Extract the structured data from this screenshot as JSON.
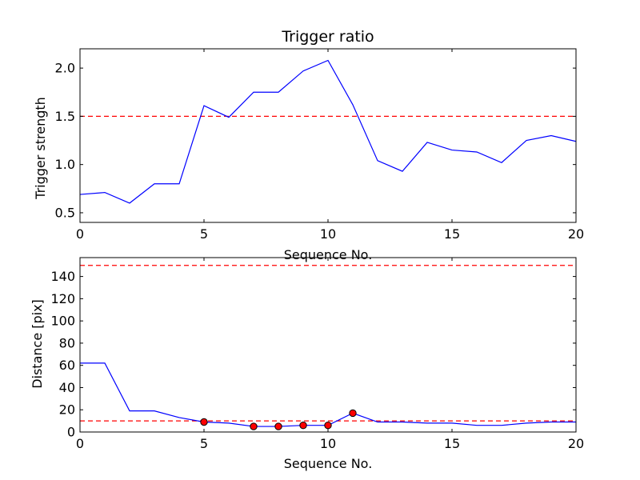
{
  "chart_data": [
    {
      "type": "line",
      "title": "Trigger ratio",
      "xlabel": "Sequence No.",
      "ylabel": "Trigger strength",
      "xlim": [
        0,
        20
      ],
      "ylim": [
        0.4,
        2.2
      ],
      "xticks": [
        "0",
        "5",
        "10",
        "15",
        "20"
      ],
      "yticks": [
        "0.5",
        "1.0",
        "1.5",
        "2.0"
      ],
      "grid": false,
      "series": [
        {
          "color": "#0000ff",
          "style": "solid",
          "x": [
            0,
            1,
            2,
            3,
            4,
            5,
            6,
            7,
            8,
            9,
            10,
            11,
            12,
            13,
            14,
            15,
            16,
            17,
            18,
            19,
            20
          ],
          "y": [
            0.69,
            0.71,
            0.6,
            0.8,
            0.8,
            1.61,
            1.49,
            1.75,
            1.75,
            1.97,
            2.08,
            1.62,
            1.04,
            0.93,
            1.23,
            1.15,
            1.13,
            1.02,
            1.25,
            1.3,
            1.24
          ]
        }
      ],
      "reference_lines": [
        {
          "y": 1.5,
          "color": "#ff0000",
          "style": "dashed"
        }
      ]
    },
    {
      "type": "line",
      "title": "",
      "xlabel": "Sequence No.",
      "ylabel": "Distance [pix]",
      "xlim": [
        0,
        20
      ],
      "ylim": [
        0,
        157
      ],
      "xticks": [
        "0",
        "5",
        "10",
        "15",
        "20"
      ],
      "yticks": [
        "0",
        "20",
        "40",
        "60",
        "80",
        "100",
        "120",
        "140"
      ],
      "grid": false,
      "series": [
        {
          "color": "#0000ff",
          "style": "solid",
          "x": [
            0,
            1,
            2,
            3,
            4,
            5,
            6,
            7,
            8,
            9,
            10,
            11,
            12,
            13,
            14,
            15,
            16,
            17,
            18,
            19,
            20
          ],
          "y": [
            62,
            62,
            19,
            19,
            13,
            9,
            8,
            5,
            5,
            6,
            6,
            17,
            9,
            9,
            8,
            8,
            6,
            6,
            8,
            9,
            9
          ]
        },
        {
          "color": "#ff0000",
          "style": "markers",
          "x": [
            5,
            7,
            8,
            9,
            10,
            11
          ],
          "y": [
            9,
            5,
            5,
            6,
            6,
            17
          ]
        }
      ],
      "reference_lines": [
        {
          "y": 10,
          "color": "#ff0000",
          "style": "dashed"
        },
        {
          "y": 150,
          "color": "#ff0000",
          "style": "dashed"
        }
      ]
    }
  ]
}
